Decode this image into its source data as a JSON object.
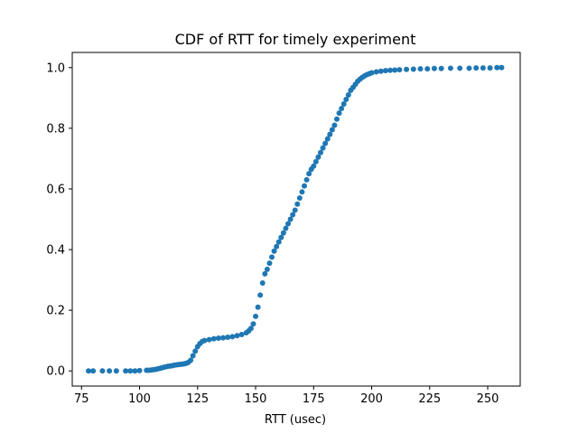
{
  "chart_data": {
    "type": "scatter",
    "title": "CDF of RTT for timely experiment",
    "xlabel": "RTT (usec)",
    "ylabel": "",
    "xlim": [
      71.0,
      264.0
    ],
    "ylim": [
      -0.05,
      1.05
    ],
    "xticks": [
      75,
      100,
      125,
      150,
      175,
      200,
      225,
      250
    ],
    "yticks": [
      0.0,
      0.2,
      0.4,
      0.6,
      0.8,
      1.0
    ],
    "xtick_labels": [
      "75",
      "100",
      "125",
      "150",
      "175",
      "200",
      "225",
      "250"
    ],
    "ytick_labels": [
      "0.0",
      "0.2",
      "0.4",
      "0.6",
      "0.8",
      "1.0"
    ],
    "grid": false,
    "color": "#1f77b4",
    "series": [
      {
        "points": [
          [
            78,
            0.0
          ],
          [
            80,
            0.0
          ],
          [
            84,
            0.0
          ],
          [
            87,
            0.0
          ],
          [
            90,
            0.0
          ],
          [
            94,
            0.0
          ],
          [
            96,
            0.0
          ],
          [
            98,
            0.0
          ],
          [
            100,
            0.001
          ],
          [
            103,
            0.002
          ],
          [
            104,
            0.002
          ],
          [
            105,
            0.003
          ],
          [
            106,
            0.004
          ],
          [
            107,
            0.005
          ],
          [
            108,
            0.007
          ],
          [
            109,
            0.009
          ],
          [
            110,
            0.011
          ],
          [
            111,
            0.013
          ],
          [
            112,
            0.015
          ],
          [
            113,
            0.016
          ],
          [
            114,
            0.017
          ],
          [
            115,
            0.019
          ],
          [
            116,
            0.02
          ],
          [
            117,
            0.021
          ],
          [
            118,
            0.022
          ],
          [
            119,
            0.023
          ],
          [
            120,
            0.025
          ],
          [
            121,
            0.028
          ],
          [
            122,
            0.035
          ],
          [
            123,
            0.05
          ],
          [
            124,
            0.065
          ],
          [
            125,
            0.08
          ],
          [
            126,
            0.09
          ],
          [
            127,
            0.097
          ],
          [
            128,
            0.1
          ],
          [
            130,
            0.103
          ],
          [
            132,
            0.106
          ],
          [
            134,
            0.108
          ],
          [
            136,
            0.109
          ],
          [
            138,
            0.111
          ],
          [
            140,
            0.113
          ],
          [
            142,
            0.116
          ],
          [
            144,
            0.12
          ],
          [
            146,
            0.126
          ],
          [
            147,
            0.132
          ],
          [
            148,
            0.14
          ],
          [
            149,
            0.155
          ],
          [
            150,
            0.18
          ],
          [
            151,
            0.21
          ],
          [
            152,
            0.25
          ],
          [
            153,
            0.29
          ],
          [
            154,
            0.32
          ],
          [
            155,
            0.335
          ],
          [
            156,
            0.355
          ],
          [
            157,
            0.375
          ],
          [
            158,
            0.395
          ],
          [
            159,
            0.41
          ],
          [
            160,
            0.425
          ],
          [
            161,
            0.44
          ],
          [
            162,
            0.455
          ],
          [
            163,
            0.47
          ],
          [
            164,
            0.485
          ],
          [
            165,
            0.5
          ],
          [
            166,
            0.515
          ],
          [
            167,
            0.53
          ],
          [
            168,
            0.55
          ],
          [
            169,
            0.57
          ],
          [
            170,
            0.59
          ],
          [
            171,
            0.61
          ],
          [
            172,
            0.63
          ],
          [
            173,
            0.65
          ],
          [
            174,
            0.665
          ],
          [
            175,
            0.675
          ],
          [
            176,
            0.69
          ],
          [
            177,
            0.705
          ],
          [
            178,
            0.72
          ],
          [
            179,
            0.735
          ],
          [
            180,
            0.75
          ],
          [
            181,
            0.765
          ],
          [
            182,
            0.78
          ],
          [
            183,
            0.795
          ],
          [
            184,
            0.81
          ],
          [
            185,
            0.83
          ],
          [
            186,
            0.85
          ],
          [
            187,
            0.865
          ],
          [
            188,
            0.88
          ],
          [
            189,
            0.895
          ],
          [
            190,
            0.91
          ],
          [
            191,
            0.925
          ],
          [
            192,
            0.935
          ],
          [
            193,
            0.945
          ],
          [
            194,
            0.955
          ],
          [
            195,
            0.962
          ],
          [
            196,
            0.968
          ],
          [
            197,
            0.973
          ],
          [
            198,
            0.977
          ],
          [
            199,
            0.98
          ],
          [
            200,
            0.983
          ],
          [
            202,
            0.986
          ],
          [
            204,
            0.988
          ],
          [
            206,
            0.99
          ],
          [
            208,
            0.991
          ],
          [
            210,
            0.992
          ],
          [
            212,
            0.993
          ],
          [
            215,
            0.994
          ],
          [
            218,
            0.995
          ],
          [
            221,
            0.996
          ],
          [
            224,
            0.996
          ],
          [
            227,
            0.997
          ],
          [
            230,
            0.997
          ],
          [
            234,
            0.998
          ],
          [
            238,
            0.998
          ],
          [
            242,
            0.998
          ],
          [
            245,
            0.999
          ],
          [
            248,
            0.999
          ],
          [
            251,
            0.999
          ],
          [
            254,
            1.0
          ],
          [
            256,
            1.0
          ]
        ]
      }
    ]
  }
}
